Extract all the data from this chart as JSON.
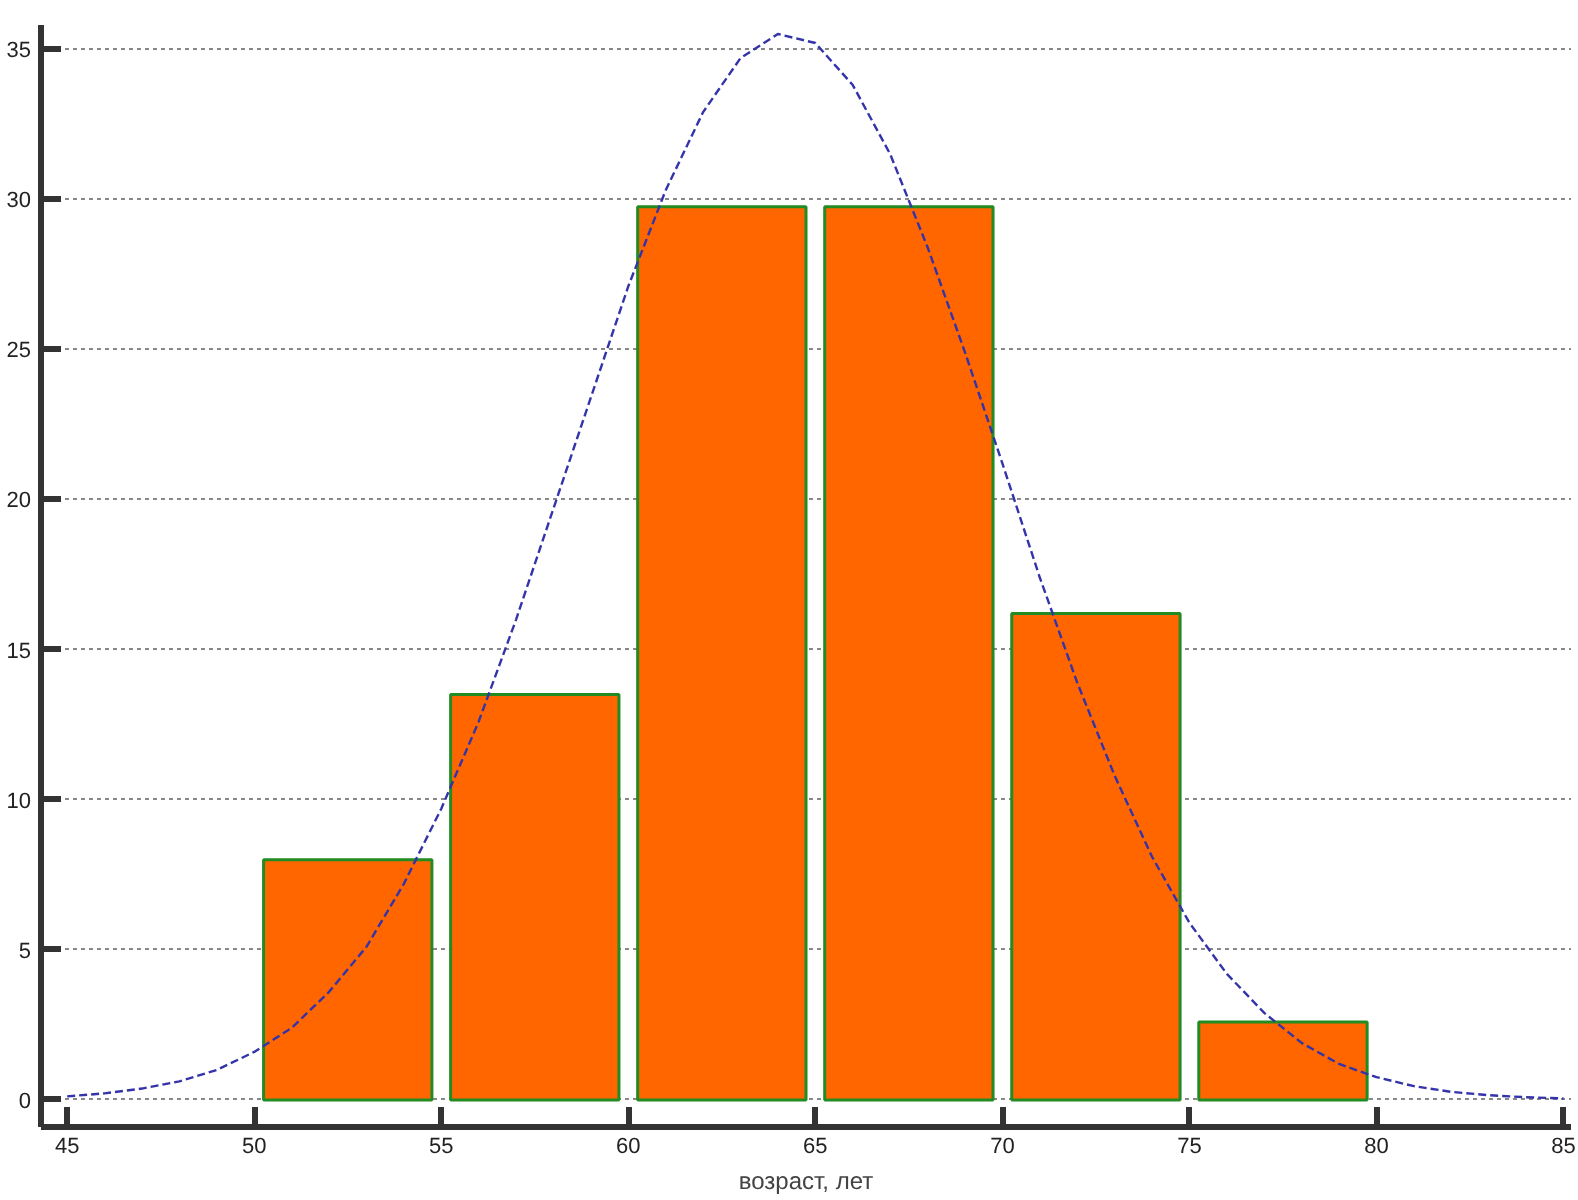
{
  "chart_data": {
    "type": "histogram",
    "xlabel": "возраст, лет",
    "bins": [
      50,
      55,
      60,
      65,
      70,
      75,
      80
    ],
    "values": [
      8.0,
      13.5,
      29.75,
      29.75,
      16.2,
      2.6
    ],
    "color": "#ff6600",
    "series": [
      {
        "type": "line",
        "color": "#3333aa",
        "line_style": "dashed",
        "marker": "none",
        "x": [
          45,
          46,
          47,
          48,
          49,
          50,
          51,
          52,
          53,
          54,
          55,
          56,
          57,
          58,
          59,
          60,
          61,
          62,
          63,
          64,
          65,
          66,
          67,
          68,
          69,
          70,
          71,
          72,
          73,
          74,
          75,
          76,
          77,
          78,
          79,
          80,
          81,
          82,
          83,
          84,
          85
        ],
        "values": [
          0.12,
          0.22,
          0.38,
          0.62,
          1.0,
          1.6,
          2.4,
          3.6,
          5.1,
          7.2,
          9.7,
          12.6,
          16.0,
          19.7,
          23.4,
          27.1,
          30.3,
          32.9,
          34.7,
          35.5,
          35.2,
          33.8,
          31.5,
          28.4,
          24.9,
          21.2,
          17.4,
          13.9,
          10.8,
          8.1,
          5.9,
          4.2,
          2.9,
          1.9,
          1.2,
          0.76,
          0.46,
          0.27,
          0.16,
          0.09,
          0.05
        ]
      }
    ],
    "xlim": [
      44.3,
      85.2
    ],
    "ylim": [
      -0.9,
      35.8
    ],
    "xticks": [
      45,
      50,
      55,
      60,
      65,
      70,
      75,
      80,
      85
    ],
    "yticks": [
      0,
      5,
      10,
      15,
      20,
      25,
      30,
      35
    ],
    "grid": "y"
  }
}
